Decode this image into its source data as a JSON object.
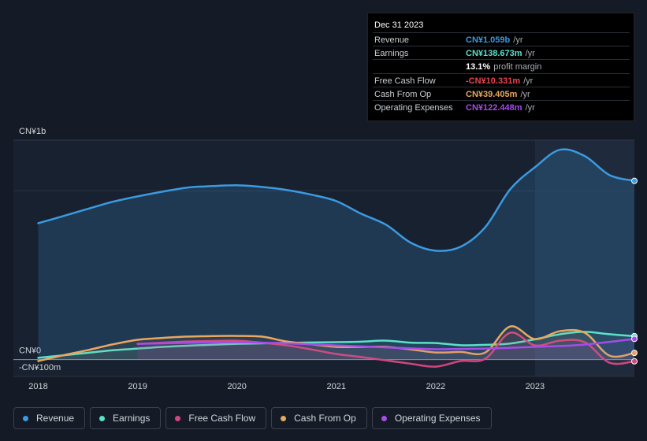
{
  "chart_data": {
    "type": "line",
    "xlim": [
      2017.75,
      2024.0
    ],
    "xticks": [
      2018,
      2019,
      2020,
      2021,
      2022,
      2023
    ],
    "ylim": [
      -100,
      1300
    ],
    "yticks": [
      {
        "value": 1000,
        "label": "CN¥1b"
      },
      {
        "value": 0,
        "label": "CN¥0"
      },
      {
        "value": -100,
        "label": "-CN¥100m"
      }
    ],
    "series": [
      {
        "name": "Revenue",
        "color": "#3b9ae1",
        "x": [
          2018.0,
          2018.25,
          2018.5,
          2018.75,
          2019.0,
          2019.25,
          2019.5,
          2019.75,
          2020.0,
          2020.25,
          2020.5,
          2020.75,
          2021.0,
          2021.25,
          2021.5,
          2021.75,
          2022.0,
          2022.25,
          2022.5,
          2022.75,
          2023.0,
          2023.25,
          2023.5,
          2023.75,
          2024.0
        ],
        "values": [
          808,
          850,
          893,
          935,
          967,
          995,
          1019,
          1028,
          1033,
          1023,
          1005,
          977,
          939,
          864,
          799,
          692,
          645,
          668,
          785,
          1009,
          1140,
          1243,
          1206,
          1093,
          1059
        ]
      },
      {
        "name": "Earnings",
        "color": "#5ce0c8",
        "x": [
          2018.0,
          2018.25,
          2018.5,
          2018.75,
          2019.0,
          2019.25,
          2019.5,
          2019.75,
          2020.0,
          2020.25,
          2020.5,
          2020.75,
          2021.0,
          2021.25,
          2021.5,
          2021.75,
          2022.0,
          2022.25,
          2022.5,
          2022.75,
          2023.0,
          2023.25,
          2023.5,
          2023.75,
          2024.0
        ],
        "values": [
          10,
          25,
          40,
          55,
          65,
          75,
          82,
          88,
          93,
          96,
          99,
          101,
          103,
          106,
          112,
          100,
          98,
          85,
          87,
          95,
          120,
          150,
          164,
          150,
          138.673
        ]
      },
      {
        "name": "Free Cash Flow",
        "color": "#d0467e",
        "x": [
          2019.0,
          2019.25,
          2019.5,
          2019.75,
          2020.0,
          2020.25,
          2020.5,
          2020.75,
          2021.0,
          2021.25,
          2021.5,
          2021.75,
          2022.0,
          2022.25,
          2022.5,
          2022.75,
          2023.0,
          2023.25,
          2023.5,
          2023.75,
          2024.0
        ],
        "values": [
          93,
          100,
          107,
          110,
          112,
          100,
          84,
          60,
          33,
          15,
          -5,
          -25,
          -42,
          -9,
          5,
          159,
          84,
          112,
          103,
          -19,
          -10.331
        ]
      },
      {
        "name": "Cash From Op",
        "color": "#e8a860",
        "x": [
          2018.0,
          2018.25,
          2018.5,
          2018.75,
          2019.0,
          2019.25,
          2019.5,
          2019.75,
          2020.0,
          2020.25,
          2020.5,
          2020.75,
          2021.0,
          2021.25,
          2021.5,
          2021.75,
          2022.0,
          2022.25,
          2022.5,
          2022.75,
          2023.0,
          2023.25,
          2023.5,
          2023.75,
          2024.0
        ],
        "values": [
          -9,
          25,
          56,
          90,
          117,
          128,
          136,
          139,
          140,
          136,
          107,
          90,
          75,
          75,
          75,
          60,
          42,
          45,
          42,
          196,
          121,
          168,
          159,
          23,
          39.405
        ]
      },
      {
        "name": "Operating Expenses",
        "color": "#a64ce8",
        "x": [
          2019.0,
          2019.25,
          2019.5,
          2019.75,
          2020.0,
          2020.25,
          2020.5,
          2020.75,
          2021.0,
          2021.25,
          2021.5,
          2021.75,
          2022.0,
          2022.25,
          2022.5,
          2022.75,
          2023.0,
          2023.25,
          2023.5,
          2023.75,
          2024.0
        ],
        "values": [
          93,
          96,
          99,
          101,
          103,
          100,
          96,
          90,
          84,
          78,
          72,
          66,
          61,
          63,
          65,
          70,
          75,
          80,
          89,
          105,
          122.448
        ]
      }
    ],
    "tooltip": {
      "date": "Dec 31 2023",
      "rows": [
        {
          "label": "Revenue",
          "value": "CN¥1.059b",
          "suffix": "/yr",
          "color": "#3b9ae1"
        },
        {
          "label": "Earnings",
          "value": "CN¥138.673m",
          "suffix": "/yr",
          "color": "#5ce0c8"
        },
        {
          "value": "13.1%",
          "suffix": "profit margin",
          "color": "#ffffff"
        },
        {
          "label": "Free Cash Flow",
          "value": "-CN¥10.331m",
          "suffix": "/yr",
          "color": "#e8454f"
        },
        {
          "label": "Cash From Op",
          "value": "CN¥39.405m",
          "suffix": "/yr",
          "color": "#e8a860"
        },
        {
          "label": "Operating Expenses",
          "value": "CN¥122.448m",
          "suffix": "/yr",
          "color": "#a64ce8"
        }
      ]
    }
  }
}
